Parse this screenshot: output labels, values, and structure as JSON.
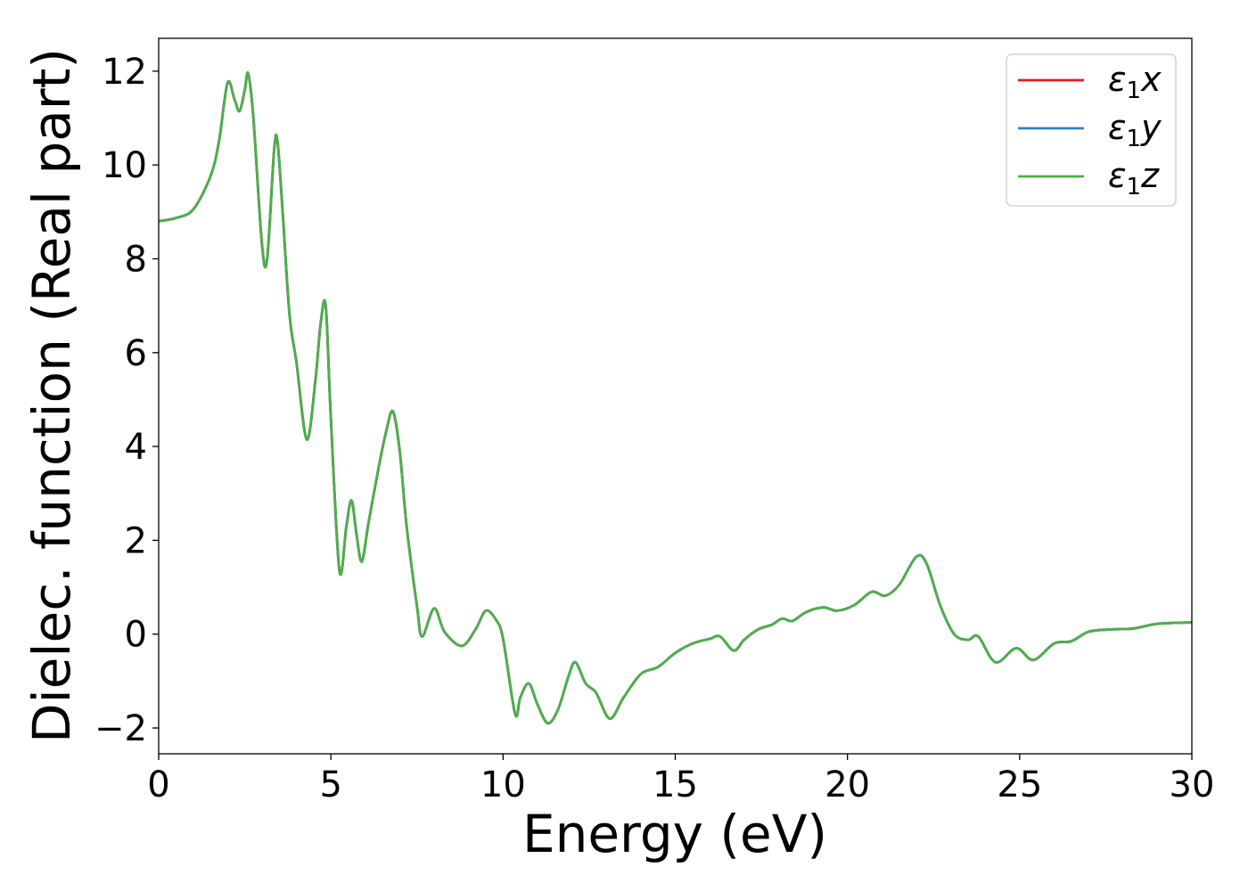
{
  "chart_data": {
    "type": "line",
    "title": "",
    "xlabel": "Energy (eV)",
    "ylabel": "Dielec. function (Real part)",
    "xlim": [
      0,
      30
    ],
    "ylim": [
      -2.55,
      12.7
    ],
    "xticks": [
      0,
      5,
      10,
      15,
      20,
      25,
      30
    ],
    "xtick_labels": [
      "0",
      "5",
      "10",
      "15",
      "20",
      "25",
      "30"
    ],
    "yticks": [
      -2,
      0,
      2,
      4,
      6,
      8,
      10,
      12
    ],
    "ytick_labels": [
      "−2",
      "0",
      "2",
      "4",
      "6",
      "8",
      "10",
      "12"
    ],
    "grid": false,
    "legend_position": "top-right",
    "x": [
      0,
      0.5,
      1.0,
      1.5,
      1.75,
      2.0,
      2.2,
      2.35,
      2.5,
      2.6,
      2.75,
      3.0,
      3.15,
      3.35,
      3.45,
      3.6,
      3.8,
      4.0,
      4.3,
      4.55,
      4.7,
      4.85,
      5.0,
      5.25,
      5.45,
      5.6,
      5.75,
      5.9,
      6.1,
      6.4,
      6.6,
      6.8,
      7.0,
      7.2,
      7.5,
      7.65,
      8.0,
      8.3,
      8.8,
      9.2,
      9.5,
      9.8,
      10.0,
      10.35,
      10.5,
      10.75,
      11.0,
      11.3,
      11.6,
      11.9,
      12.1,
      12.4,
      12.7,
      13.1,
      13.5,
      14.0,
      14.5,
      15.0,
      15.5,
      16.0,
      16.3,
      16.7,
      17.0,
      17.4,
      17.8,
      18.1,
      18.4,
      18.8,
      19.3,
      19.7,
      20.2,
      20.7,
      21.1,
      21.5,
      22.0,
      22.3,
      22.7,
      23.1,
      23.5,
      23.8,
      24.3,
      24.9,
      25.4,
      26.0,
      26.5,
      27.0,
      27.6,
      28.3,
      29.0,
      30.0
    ],
    "series": [
      {
        "name": "ε1x",
        "color": "#e41a1c",
        "y": [
          8.8,
          8.87,
          9.05,
          9.75,
          10.5,
          11.75,
          11.4,
          11.15,
          11.6,
          11.95,
          11.0,
          8.3,
          8.0,
          10.3,
          10.5,
          9.0,
          6.8,
          5.8,
          4.15,
          5.4,
          6.6,
          7.0,
          4.6,
          1.35,
          2.3,
          2.85,
          2.1,
          1.55,
          2.4,
          3.6,
          4.3,
          4.75,
          3.9,
          2.3,
          0.6,
          -0.05,
          0.55,
          0.05,
          -0.25,
          0.1,
          0.5,
          0.3,
          -0.1,
          -1.7,
          -1.35,
          -1.05,
          -1.5,
          -1.9,
          -1.6,
          -0.9,
          -0.6,
          -1.05,
          -1.25,
          -1.8,
          -1.35,
          -0.85,
          -0.7,
          -0.4,
          -0.2,
          -0.1,
          -0.05,
          -0.35,
          -0.12,
          0.1,
          0.2,
          0.33,
          0.28,
          0.47,
          0.57,
          0.5,
          0.62,
          0.9,
          0.82,
          1.05,
          1.65,
          1.5,
          0.6,
          0.0,
          -0.12,
          -0.05,
          -0.6,
          -0.3,
          -0.55,
          -0.2,
          -0.15,
          0.05,
          0.1,
          0.12,
          0.22,
          0.25
        ]
      },
      {
        "name": "ε1y",
        "color": "#377eb8",
        "y": [
          8.8,
          8.87,
          9.05,
          9.75,
          10.5,
          11.75,
          11.4,
          11.15,
          11.6,
          11.95,
          11.0,
          8.3,
          8.0,
          10.3,
          10.5,
          9.0,
          6.8,
          5.8,
          4.15,
          5.4,
          6.6,
          7.0,
          4.6,
          1.35,
          2.3,
          2.85,
          2.1,
          1.55,
          2.4,
          3.6,
          4.3,
          4.75,
          3.9,
          2.3,
          0.6,
          -0.05,
          0.55,
          0.05,
          -0.25,
          0.1,
          0.5,
          0.3,
          -0.1,
          -1.7,
          -1.35,
          -1.05,
          -1.5,
          -1.9,
          -1.6,
          -0.9,
          -0.6,
          -1.05,
          -1.25,
          -1.8,
          -1.35,
          -0.85,
          -0.7,
          -0.4,
          -0.2,
          -0.1,
          -0.05,
          -0.35,
          -0.12,
          0.1,
          0.2,
          0.33,
          0.28,
          0.47,
          0.57,
          0.5,
          0.62,
          0.9,
          0.82,
          1.05,
          1.65,
          1.5,
          0.6,
          0.0,
          -0.12,
          -0.05,
          -0.6,
          -0.3,
          -0.55,
          -0.2,
          -0.15,
          0.05,
          0.1,
          0.12,
          0.22,
          0.25
        ]
      },
      {
        "name": "ε1z",
        "color": "#4daf4a",
        "y": [
          8.8,
          8.87,
          9.05,
          9.75,
          10.5,
          11.75,
          11.4,
          11.15,
          11.6,
          11.95,
          11.0,
          8.3,
          8.0,
          10.3,
          10.5,
          9.0,
          6.8,
          5.8,
          4.15,
          5.4,
          6.6,
          7.0,
          4.6,
          1.35,
          2.3,
          2.85,
          2.1,
          1.55,
          2.4,
          3.6,
          4.3,
          4.75,
          3.9,
          2.3,
          0.6,
          -0.05,
          0.55,
          0.05,
          -0.25,
          0.1,
          0.5,
          0.3,
          -0.1,
          -1.7,
          -1.35,
          -1.05,
          -1.5,
          -1.9,
          -1.6,
          -0.9,
          -0.6,
          -1.05,
          -1.25,
          -1.8,
          -1.35,
          -0.85,
          -0.7,
          -0.4,
          -0.2,
          -0.1,
          -0.05,
          -0.35,
          -0.12,
          0.1,
          0.2,
          0.33,
          0.28,
          0.47,
          0.57,
          0.5,
          0.62,
          0.9,
          0.82,
          1.05,
          1.65,
          1.5,
          0.6,
          0.0,
          -0.12,
          -0.05,
          -0.6,
          -0.3,
          -0.55,
          -0.2,
          -0.15,
          0.05,
          0.1,
          0.12,
          0.22,
          0.25
        ]
      }
    ],
    "legend": [
      {
        "symbol": "ε",
        "sub": "1",
        "axis": "x",
        "color": "#e41a1c"
      },
      {
        "symbol": "ε",
        "sub": "1",
        "axis": "y",
        "color": "#377eb8"
      },
      {
        "symbol": "ε",
        "sub": "1",
        "axis": "z",
        "color": "#4daf4a"
      }
    ]
  }
}
